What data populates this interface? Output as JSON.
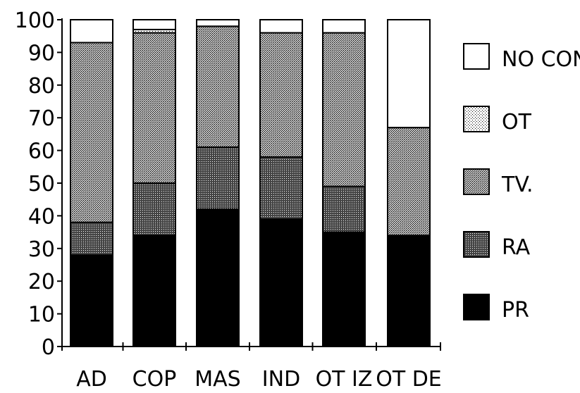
{
  "chart_data": {
    "type": "bar",
    "stacked": true,
    "categories": [
      "AD",
      "COP",
      "MAS",
      "IND",
      "OT IZ",
      "OT DE"
    ],
    "series": [
      {
        "name": "PR",
        "values": [
          28,
          34,
          42,
          39,
          35,
          34
        ]
      },
      {
        "name": "RA",
        "values": [
          10,
          16,
          19,
          19,
          14,
          0
        ]
      },
      {
        "name": "TV.",
        "values": [
          55,
          46,
          37,
          38,
          47,
          33
        ]
      },
      {
        "name": "OT",
        "values": [
          0,
          1,
          0,
          0,
          0,
          0
        ]
      },
      {
        "name": "NO CON",
        "values": [
          7,
          3,
          2,
          4,
          4,
          33
        ]
      }
    ],
    "ylim": [
      0,
      100
    ],
    "yticks": [
      "0",
      "10",
      "20",
      "30",
      "40",
      "50",
      "60",
      "70",
      "80",
      "90",
      "100"
    ],
    "legend_order": [
      "NO CON",
      "OT",
      "TV.",
      "RA",
      "PR"
    ],
    "legend_position": "right",
    "grid": false
  }
}
